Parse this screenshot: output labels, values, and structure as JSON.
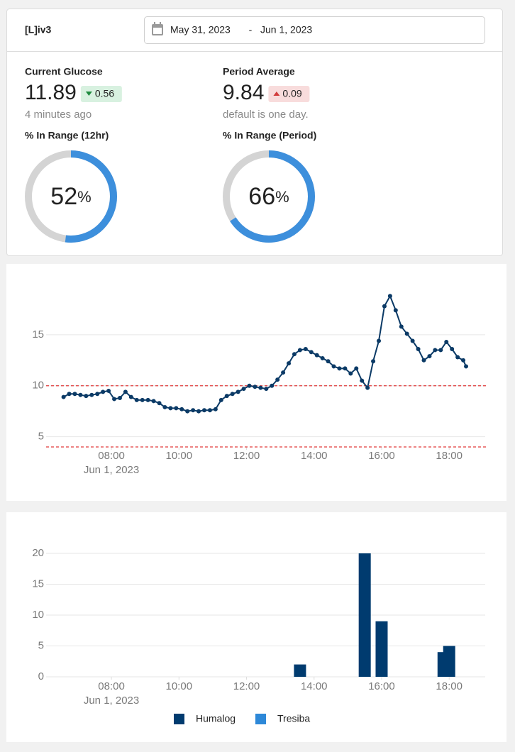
{
  "header": {
    "title": "[L]iv3",
    "date_start": "May 31, 2023",
    "date_sep": "-",
    "date_end": "Jun 1, 2023"
  },
  "stats": [
    {
      "label": "Current Glucose",
      "value": 11.89,
      "delta": 0.56,
      "delta_dir": "down",
      "note": "4 minutes ago",
      "range_label": "% In Range (12hr)",
      "in_range": 52,
      "unit": "%"
    },
    {
      "label": "Period Average",
      "value": 9.84,
      "delta": 0.09,
      "delta_dir": "up",
      "note": "default is one day.",
      "range_label": "% In Range (Period)",
      "in_range": 66,
      "unit": "%"
    }
  ],
  "chart_data": [
    {
      "type": "line",
      "xlim": [
        "06:04",
        "19:04"
      ],
      "xticks": [
        "08:00",
        "10:00",
        "12:00",
        "14:00",
        "16:00",
        "18:00"
      ],
      "xtick_date": "Jun 1, 2023",
      "ylim": [
        4,
        20
      ],
      "yticks": [
        5,
        10,
        15
      ],
      "grid": true,
      "thresholds": [
        10,
        4
      ],
      "threshold_color": "#e03a3a",
      "series": [
        {
          "color": "#0b3a66",
          "x": [
            "06:35",
            "06:45",
            "06:55",
            "07:05",
            "07:15",
            "07:25",
            "07:35",
            "07:45",
            "07:55",
            "08:05",
            "08:15",
            "08:25",
            "08:35",
            "08:45",
            "08:55",
            "09:05",
            "09:15",
            "09:25",
            "09:35",
            "09:45",
            "09:55",
            "10:05",
            "10:15",
            "10:25",
            "10:35",
            "10:45",
            "10:55",
            "11:05",
            "11:15",
            "11:25",
            "11:35",
            "11:45",
            "11:55",
            "12:05",
            "12:15",
            "12:25",
            "12:35",
            "12:45",
            "12:55",
            "13:05",
            "13:15",
            "13:25",
            "13:35",
            "13:45",
            "13:55",
            "14:05",
            "14:15",
            "14:25",
            "14:35",
            "14:45",
            "14:55",
            "15:05",
            "15:15",
            "15:25",
            "15:35",
            "15:45",
            "15:55",
            "16:05",
            "16:15",
            "16:25",
            "16:35",
            "16:45",
            "16:55",
            "17:05",
            "17:15",
            "17:25",
            "17:35",
            "17:45",
            "17:55",
            "18:05",
            "18:15",
            "18:25",
            "18:30"
          ],
          "values": [
            8.9,
            9.2,
            9.2,
            9.1,
            9.0,
            9.1,
            9.2,
            9.4,
            9.5,
            8.7,
            8.8,
            9.4,
            8.9,
            8.6,
            8.6,
            8.6,
            8.5,
            8.3,
            7.9,
            7.8,
            7.8,
            7.7,
            7.5,
            7.6,
            7.5,
            7.6,
            7.6,
            7.7,
            8.6,
            9.0,
            9.2,
            9.4,
            9.7,
            10.0,
            9.9,
            9.8,
            9.7,
            10.0,
            10.6,
            11.3,
            12.2,
            13.1,
            13.5,
            13.6,
            13.3,
            13.0,
            12.7,
            12.4,
            11.9,
            11.7,
            11.7,
            11.2,
            11.7,
            10.5,
            9.8,
            12.4,
            14.4,
            17.8,
            18.8,
            17.4,
            15.8,
            15.1,
            14.4,
            13.6,
            12.5,
            12.9,
            13.5,
            13.5,
            14.3,
            13.6,
            12.8,
            12.5,
            11.9
          ]
        }
      ]
    },
    {
      "type": "bar",
      "xlim": [
        "06:04",
        "19:04"
      ],
      "xticks": [
        "08:00",
        "10:00",
        "12:00",
        "14:00",
        "16:00",
        "18:00"
      ],
      "xtick_date": "Jun 1, 2023",
      "ylim": [
        0,
        20
      ],
      "yticks": [
        0,
        5,
        10,
        15,
        20
      ],
      "grid": true,
      "series": [
        {
          "name": "Humalog",
          "color": "#003b6f",
          "x": [
            "13:35",
            "15:30",
            "16:00",
            "17:50",
            "18:00"
          ],
          "values": [
            2,
            20,
            9,
            4,
            5
          ]
        },
        {
          "name": "Tresiba",
          "color": "#2d88d8",
          "x": [],
          "values": []
        }
      ]
    }
  ]
}
